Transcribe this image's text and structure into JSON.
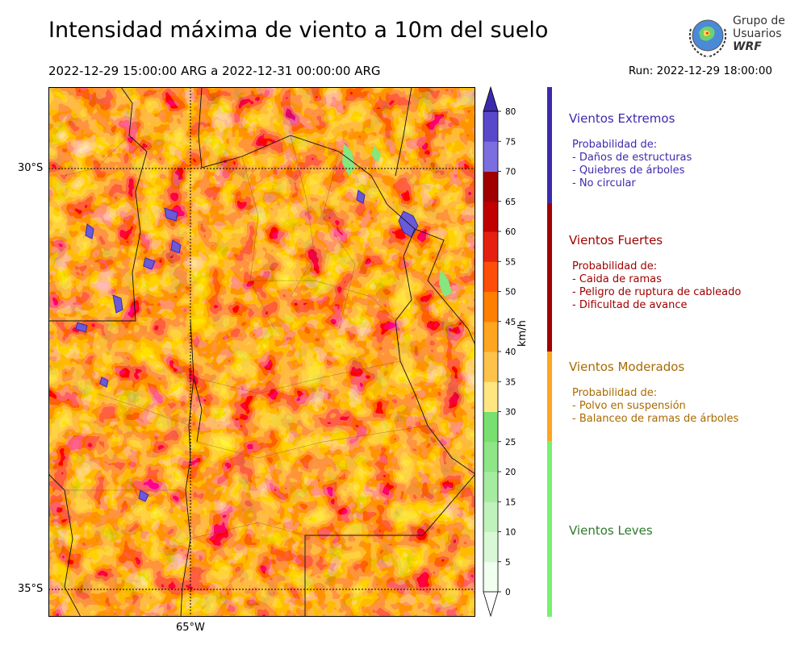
{
  "header": {
    "title": "Intensidad máxima de viento a 10m del suelo",
    "subtitle": "2022-12-29 15:00:00 ARG  a  2022-12-31 00:00:00 ARG",
    "run": "Run: 2022-12-29 18:00:00"
  },
  "logo": {
    "line1": "Grupo de",
    "line2": "Usuarios",
    "line3": "WRF"
  },
  "map": {
    "lat_labels": [
      "30°S",
      "35°S"
    ],
    "lon_label": "65°W",
    "lat_values": [
      -30,
      -35
    ],
    "lon_value": -65,
    "extent": {
      "lon_min": -67,
      "lon_max": -61,
      "lat_min": -35.3,
      "lat_max": -29.0
    }
  },
  "colorbar": {
    "unit": "km/h",
    "ticks": [
      "0",
      "5",
      "10",
      "15",
      "20",
      "25",
      "30",
      "35",
      "40",
      "45",
      "50",
      "55",
      "60",
      "65",
      "70",
      "75",
      "80"
    ],
    "colors": [
      "#f0fff0",
      "#d8f8d6",
      "#c0f2bc",
      "#a6eca0",
      "#8ee686",
      "#78e070",
      "#ffe680",
      "#ffc24a",
      "#ffa520",
      "#ff7f00",
      "#ff4d0a",
      "#e62010",
      "#c00000",
      "#a00000",
      "#7c6ee0",
      "#5a48cc",
      "#3c2aad"
    ]
  },
  "categories": [
    {
      "title": "Vientos Extremos",
      "color": "#3c2aad",
      "lines": [
        "Probabilidad de:",
        "- Daños de estructuras",
        "- Quiebres de árboles",
        "- No circular"
      ]
    },
    {
      "title": "Vientos Fuertes",
      "color": "#a00000",
      "lines": [
        "Probabilidad de:",
        "- Caida de ramas",
        "- Peligro de ruptura de cableado",
        "- Dificultad de avance"
      ]
    },
    {
      "title": "Vientos Moderados",
      "color": "#a86a00",
      "lines": [
        "Probabilidad de:",
        "- Polvo en suspensión",
        "- Balanceo de ramas de árboles"
      ]
    },
    {
      "title": "Vientos Leves",
      "color": "#2e7a2e",
      "lines": []
    }
  ],
  "category_bar_colors": [
    "#3c2aad",
    "#a00000",
    "#ffa520",
    "#78f070"
  ]
}
